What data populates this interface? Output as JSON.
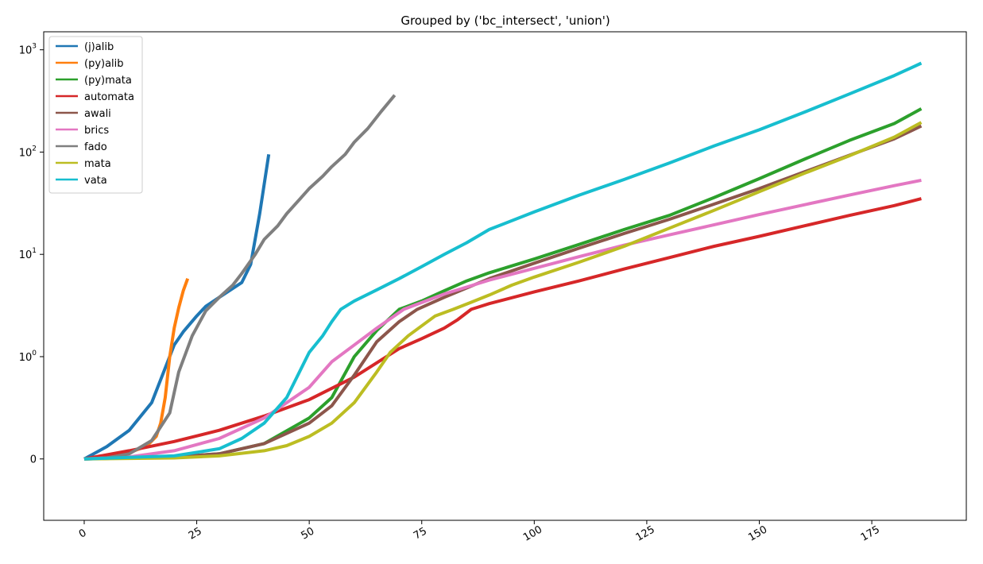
{
  "chart_data": {
    "type": "line",
    "title": "Grouped by ('bc_intersect', 'union')",
    "xlabel": "",
    "ylabel": "",
    "xlim": [
      -9,
      196
    ],
    "yscale": "symlog",
    "ylim": [
      -0.6,
      1500
    ],
    "grid": false,
    "legend_position": "top-left",
    "x_ticks": [
      0,
      25,
      50,
      75,
      100,
      125,
      150,
      175
    ],
    "x_tick_labels": [
      "0",
      "25",
      "50",
      "75",
      "100",
      "125",
      "150",
      "175"
    ],
    "y_ticks": [
      0,
      1,
      10,
      100,
      1000
    ],
    "y_tick_labels": [
      {
        "base": "0",
        "exp": ""
      },
      {
        "base": "10",
        "exp": "0"
      },
      {
        "base": "10",
        "exp": "1"
      },
      {
        "base": "10",
        "exp": "2"
      },
      {
        "base": "10",
        "exp": "3"
      }
    ],
    "series": [
      {
        "name": "(j)alib",
        "color": "#1f77b4",
        "x": [
          0,
          5,
          10,
          15,
          20,
          22,
          25,
          27,
          30,
          35,
          37,
          39,
          41
        ],
        "y": [
          0,
          0.12,
          0.28,
          0.55,
          1.3,
          1.75,
          2.5,
          3.1,
          3.8,
          5.3,
          8,
          25,
          95
        ]
      },
      {
        "name": "(py)alib",
        "color": "#ff7f0e",
        "x": [
          0,
          5,
          10,
          14,
          16,
          17,
          18,
          19,
          20,
          21,
          22,
          23
        ],
        "y": [
          0,
          0.02,
          0.06,
          0.13,
          0.22,
          0.35,
          0.6,
          1.0,
          1.9,
          3.0,
          4.4,
          5.8
        ]
      },
      {
        "name": "(py)mata",
        "color": "#2ca02c",
        "x": [
          0,
          20,
          30,
          40,
          50,
          55,
          60,
          65,
          70,
          75,
          80,
          85,
          90,
          100,
          110,
          120,
          130,
          140,
          150,
          160,
          170,
          180,
          186
        ],
        "y": [
          0,
          0.02,
          0.05,
          0.15,
          0.4,
          0.6,
          1.0,
          1.8,
          2.9,
          3.5,
          4.4,
          5.5,
          6.6,
          9.0,
          12.5,
          17.5,
          24,
          36,
          55,
          85,
          130,
          190,
          265
        ]
      },
      {
        "name": "automata",
        "color": "#d62728",
        "x": [
          0,
          10,
          20,
          30,
          40,
          50,
          60,
          70,
          75,
          80,
          83,
          86,
          90,
          100,
          110,
          120,
          130,
          140,
          150,
          160,
          170,
          180,
          186
        ],
        "y": [
          0,
          0.08,
          0.17,
          0.28,
          0.42,
          0.58,
          0.8,
          1.2,
          1.5,
          1.9,
          2.3,
          2.9,
          3.3,
          4.3,
          5.5,
          7.2,
          9.3,
          12,
          15,
          19,
          24,
          30,
          35
        ]
      },
      {
        "name": "awali",
        "color": "#8c564b",
        "x": [
          0,
          20,
          30,
          40,
          50,
          55,
          60,
          65,
          70,
          74,
          80,
          90,
          100,
          110,
          120,
          130,
          140,
          150,
          160,
          170,
          180,
          186
        ],
        "y": [
          0,
          0.02,
          0.05,
          0.15,
          0.35,
          0.52,
          0.82,
          1.4,
          2.2,
          2.9,
          3.8,
          5.8,
          8.2,
          11.5,
          16,
          22,
          31,
          44,
          64,
          93,
          135,
          180
        ]
      },
      {
        "name": "brics",
        "color": "#e377c2",
        "x": [
          0,
          10,
          20,
          30,
          40,
          50,
          55,
          60,
          65,
          71,
          80,
          90,
          100,
          110,
          120,
          130,
          140,
          150,
          160,
          170,
          180,
          186
        ],
        "y": [
          0,
          0.02,
          0.08,
          0.2,
          0.4,
          0.7,
          0.95,
          1.3,
          1.9,
          2.9,
          4.1,
          5.6,
          7.3,
          9.5,
          12.3,
          15.5,
          19.5,
          24.5,
          30.5,
          38,
          47,
          53
        ]
      },
      {
        "name": "fado",
        "color": "#7f7f7f",
        "x": [
          0,
          5,
          10,
          15,
          19,
          21,
          24,
          27,
          30,
          33,
          35,
          38,
          40,
          43,
          45,
          48,
          50,
          53,
          55,
          58,
          60,
          63,
          66,
          69
        ],
        "y": [
          0,
          0.01,
          0.05,
          0.18,
          0.45,
          0.85,
          1.6,
          2.8,
          3.8,
          5.0,
          6.5,
          10,
          14,
          19,
          25,
          35,
          44,
          58,
          72,
          95,
          125,
          170,
          250,
          360
        ]
      },
      {
        "name": "mata",
        "color": "#bcbd22",
        "x": [
          0,
          20,
          30,
          40,
          45,
          50,
          55,
          60,
          65,
          68,
          72,
          75,
          78,
          82,
          86,
          90,
          95,
          100,
          110,
          120,
          130,
          140,
          150,
          160,
          170,
          180,
          186
        ],
        "y": [
          0,
          0.01,
          0.03,
          0.08,
          0.13,
          0.22,
          0.35,
          0.55,
          0.85,
          1.1,
          1.6,
          2.0,
          2.5,
          2.9,
          3.4,
          4.0,
          5.0,
          6.0,
          8.4,
          12,
          18,
          27,
          41,
          62,
          92,
          140,
          195
        ]
      },
      {
        "name": "vata",
        "color": "#17becf",
        "x": [
          0,
          20,
          30,
          35,
          40,
          45,
          50,
          53,
          55,
          57,
          60,
          65,
          70,
          75,
          80,
          85,
          90,
          100,
          110,
          120,
          130,
          140,
          150,
          160,
          170,
          180,
          186
        ],
        "y": [
          0,
          0.03,
          0.1,
          0.2,
          0.35,
          0.6,
          1.1,
          1.6,
          2.2,
          2.9,
          3.5,
          4.5,
          5.8,
          7.6,
          10,
          13,
          17.5,
          26,
          38,
          54,
          78,
          115,
          165,
          245,
          370,
          560,
          740
        ]
      }
    ]
  }
}
